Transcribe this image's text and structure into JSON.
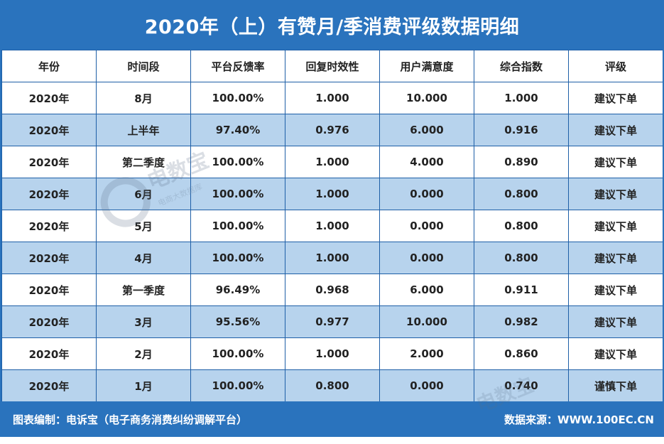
{
  "title": "2020年（上）有赞月/季消费评级数据明细",
  "table": {
    "headers": [
      "年份",
      "时间段",
      "平台反馈率",
      "回复时效性",
      "用户满意度",
      "综合指数",
      "评级"
    ],
    "rows": [
      [
        "2020年",
        "8月",
        "100.00%",
        "1.000",
        "10.000",
        "1.000",
        "建议下单"
      ],
      [
        "2020年",
        "上半年",
        "97.40%",
        "0.976",
        "6.000",
        "0.916",
        "建议下单"
      ],
      [
        "2020年",
        "第二季度",
        "100.00%",
        "1.000",
        "4.000",
        "0.890",
        "建议下单"
      ],
      [
        "2020年",
        "6月",
        "100.00%",
        "1.000",
        "0.000",
        "0.800",
        "建议下单"
      ],
      [
        "2020年",
        "5月",
        "100.00%",
        "1.000",
        "0.000",
        "0.800",
        "建议下单"
      ],
      [
        "2020年",
        "4月",
        "100.00%",
        "1.000",
        "0.000",
        "0.800",
        "建议下单"
      ],
      [
        "2020年",
        "第一季度",
        "96.49%",
        "0.968",
        "6.000",
        "0.911",
        "建议下单"
      ],
      [
        "2020年",
        "3月",
        "95.56%",
        "0.977",
        "10.000",
        "0.982",
        "建议下单"
      ],
      [
        "2020年",
        "2月",
        "100.00%",
        "1.000",
        "2.000",
        "0.860",
        "建议下单"
      ],
      [
        "2020年",
        "1月",
        "100.00%",
        "0.800",
        "0.000",
        "0.740",
        "谨慎下单"
      ]
    ]
  },
  "footer": {
    "left": "图表编制：电诉宝（电子商务消费纠纷调解平台）",
    "right": "数据来源：WWW.100EC.CN"
  },
  "watermark": {
    "logo_text": "电数宝",
    "subtext": "电商大数据库"
  },
  "colors": {
    "frame": "#2a73bd",
    "alt_row": "#b7d3ed",
    "border": "#1e5fa7"
  }
}
